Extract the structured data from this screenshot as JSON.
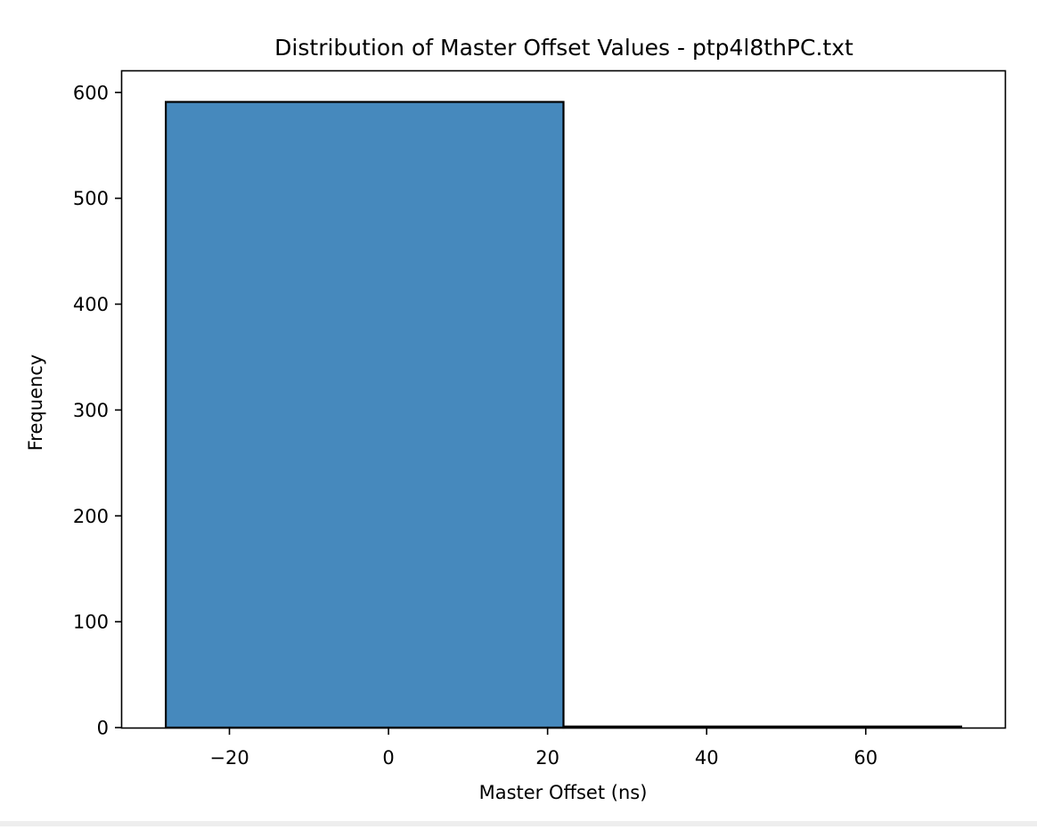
{
  "chart_data": {
    "type": "bar",
    "title": "Distribution of Master Offset Values - ptp4l8thPC.txt",
    "xlabel": "Master Offset (ns)",
    "ylabel": "Frequency",
    "bins": [
      {
        "x0": -28,
        "x1": 22,
        "count": 591
      },
      {
        "x0": 22,
        "x1": 72,
        "count": 1
      }
    ],
    "xlim": [
      -33.5,
      77.5
    ],
    "ylim": [
      0,
      620
    ],
    "xticks": [
      -20,
      0,
      20,
      40,
      60
    ],
    "xtick_labels": [
      "−20",
      "0",
      "20",
      "40",
      "60"
    ],
    "yticks": [
      0,
      100,
      200,
      300,
      400,
      500,
      600
    ],
    "ytick_labels": [
      "0",
      "100",
      "200",
      "300",
      "400",
      "500",
      "600"
    ],
    "bar_color": "#4689BD",
    "edge_color": "#000000",
    "grid": false,
    "legend": "none"
  }
}
